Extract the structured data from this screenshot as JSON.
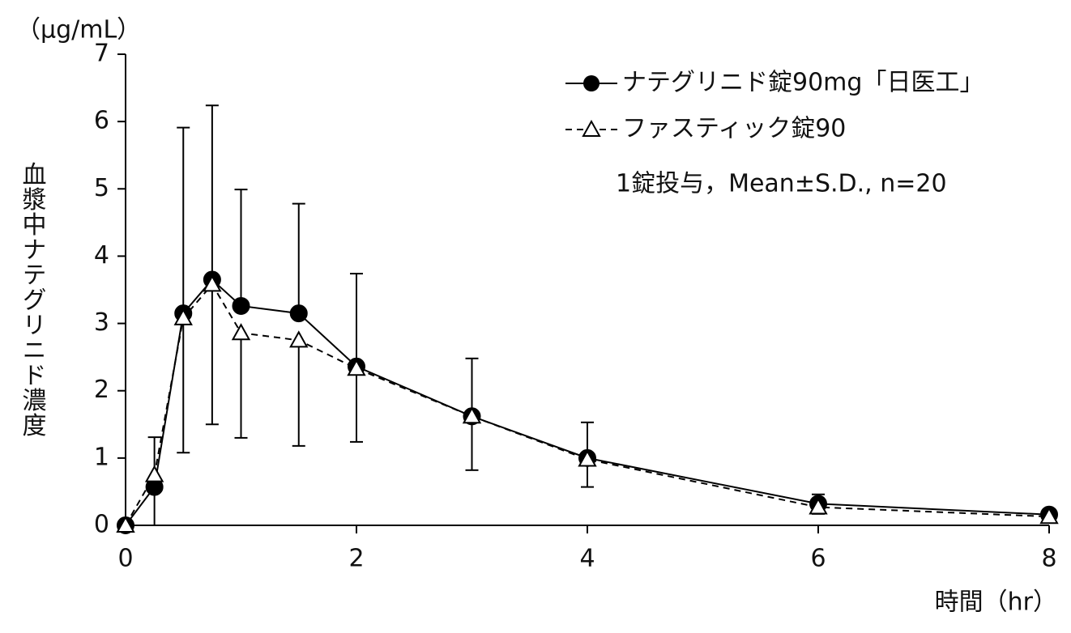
{
  "chart_data": {
    "type": "line",
    "y_unit": "（μg/mL）",
    "ylabel": "血漿中ナテグリニド濃度",
    "xlabel": "時間（hr）",
    "annotation": "1錠投与，Mean±S.D., n=20",
    "x": [
      0,
      0.25,
      0.5,
      0.75,
      1,
      1.5,
      2,
      3,
      4,
      6,
      8
    ],
    "series": [
      {
        "name": "ナテグリニド錠90mg「日医工」",
        "color": "#000000",
        "marker": "circle",
        "dash": false,
        "error_side": "upper",
        "values": [
          0,
          0.57,
          3.15,
          3.65,
          3.26,
          3.15,
          2.36,
          1.62,
          1.0,
          0.32,
          0.16
        ],
        "errors": [
          0,
          0.74,
          2.76,
          2.59,
          1.73,
          1.63,
          1.38,
          0.86,
          0.53,
          0.14,
          0.02
        ]
      },
      {
        "name": "ファスティック錠90",
        "color": "#000000",
        "marker": "triangle",
        "dash": true,
        "error_side": "lower",
        "values": [
          0,
          0.75,
          3.08,
          3.58,
          2.86,
          2.75,
          2.33,
          1.62,
          0.98,
          0.27,
          0.13
        ],
        "errors": [
          0,
          0.75,
          2.0,
          2.08,
          1.56,
          1.57,
          1.09,
          0.8,
          0.41,
          0.1,
          0.02
        ]
      }
    ],
    "xlim": [
      0,
      8
    ],
    "xticks": [
      0,
      2,
      4,
      6,
      8
    ],
    "ylim": [
      0,
      7
    ],
    "yticks": [
      0,
      1,
      2,
      3,
      4,
      5,
      6,
      7
    ],
    "grid": false
  }
}
